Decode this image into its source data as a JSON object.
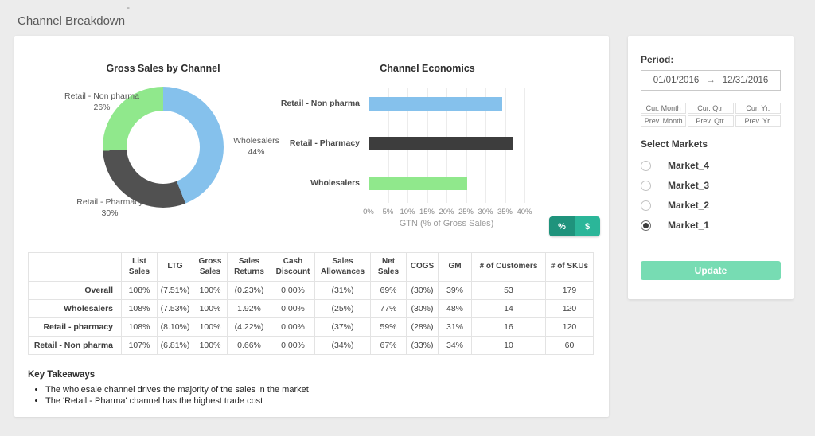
{
  "page": {
    "title": "Channel Breakdown"
  },
  "colors": {
    "blue": "#85C1EC",
    "dark_gray": "#515151",
    "green": "#90E88C",
    "bar_dark": "#3D3D3D",
    "teal_dark": "#1F937C",
    "teal": "#2BB699",
    "mint": "#77DCB3"
  },
  "chart_data": [
    {
      "type": "pie",
      "donut": true,
      "title": "Gross Sales by Channel",
      "labels": [
        "Wholesalers",
        "Retail - Pharmacy",
        "Retail - Non pharma"
      ],
      "values": [
        44,
        30,
        26
      ],
      "colors": [
        "#85C1EC",
        "#515151",
        "#90E88C"
      ],
      "label_positions": "outside"
    },
    {
      "type": "bar",
      "orientation": "horizontal",
      "title": "Channel Economics",
      "categories": [
        "Retail - Non pharma",
        "Retail - Pharmacy",
        "Wholesalers"
      ],
      "values": [
        34,
        37,
        25
      ],
      "colors": [
        "#85C1EC",
        "#3D3D3D",
        "#90E88C"
      ],
      "xlabel": "GTN (% of Gross Sales)",
      "xlim": [
        0,
        40
      ],
      "ticks": [
        "0%",
        "5%",
        "10%",
        "15%",
        "20%",
        "25%",
        "30%",
        "35%",
        "40%"
      ],
      "grid": true
    }
  ],
  "toggle": {
    "percent": "%",
    "dollar": "$"
  },
  "table": {
    "columns": [
      "",
      "List Sales",
      "LTG",
      "Gross Sales",
      "Sales Returns",
      "Cash Discount",
      "Sales Allowances",
      "Net Sales",
      "COGS",
      "GM",
      "# of Customers",
      "# of SKUs"
    ],
    "rows": [
      {
        "label": "Overall",
        "cells": [
          "108%",
          "(7.51%)",
          "100%",
          "(0.23%)",
          "0.00%",
          "(31%)",
          "69%",
          "(30%)",
          "39%",
          "53",
          "179"
        ]
      },
      {
        "label": "Wholesalers",
        "cells": [
          "108%",
          "(7.53%)",
          "100%",
          "1.92%",
          "0.00%",
          "(25%)",
          "77%",
          "(30%)",
          "48%",
          "14",
          "120"
        ]
      },
      {
        "label": "Retail - pharmacy",
        "cells": [
          "108%",
          "(8.10%)",
          "100%",
          "(4.22%)",
          "0.00%",
          "(37%)",
          "59%",
          "(28%)",
          "31%",
          "16",
          "120"
        ]
      },
      {
        "label": "Retail - Non pharma",
        "cells": [
          "107%",
          "(6.81%)",
          "100%",
          "0.66%",
          "0.00%",
          "(34%)",
          "67%",
          "(33%)",
          "34%",
          "10",
          "60"
        ]
      }
    ]
  },
  "takeaways": {
    "title": "Key Takeaways",
    "items": [
      "The wholesale channel drives the majority of the sales in the market",
      "The 'Retail - Pharma' channel has the highest trade cost"
    ]
  },
  "sidebar": {
    "period_label": "Period:",
    "date_from": "01/01/2016",
    "arrow": "→",
    "date_to": "12/31/2016",
    "period_buttons": [
      "Cur. Month",
      "Cur. Qtr.",
      "Cur. Yr.",
      "Prev. Month",
      "Prev. Qtr.",
      "Prev. Yr."
    ],
    "markets_label": "Select Markets",
    "markets": [
      {
        "label": "Market_4",
        "selected": false
      },
      {
        "label": "Market_3",
        "selected": false
      },
      {
        "label": "Market_2",
        "selected": false
      },
      {
        "label": "Market_1",
        "selected": true
      }
    ],
    "update_label": "Update"
  }
}
